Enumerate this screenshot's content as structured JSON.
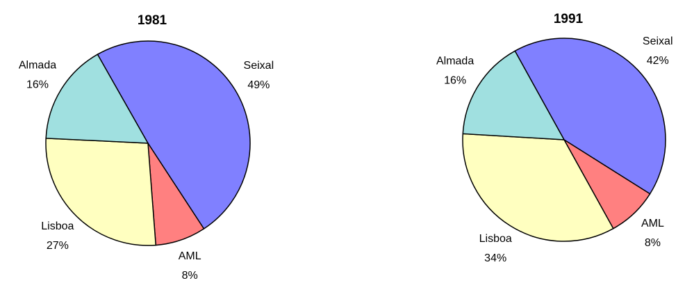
{
  "chart_data": [
    {
      "type": "pie",
      "title": "1981",
      "categories": [
        "Seixal",
        "AML",
        "Lisboa",
        "Almada"
      ],
      "values": [
        49,
        8,
        27,
        16
      ],
      "value_labels": [
        "49%",
        "8%",
        "27%",
        "16%"
      ],
      "colors": [
        "#8080ff",
        "#ff8080",
        "#ffffc0",
        "#a0e0e0"
      ]
    },
    {
      "type": "pie",
      "title": "1991",
      "categories": [
        "Seixal",
        "AML",
        "Lisboa",
        "Almada"
      ],
      "values": [
        42,
        8,
        34,
        16
      ],
      "value_labels": [
        "42%",
        "8%",
        "34%",
        "16%"
      ],
      "colors": [
        "#8080ff",
        "#ff8080",
        "#ffffc0",
        "#a0e0e0"
      ]
    }
  ]
}
